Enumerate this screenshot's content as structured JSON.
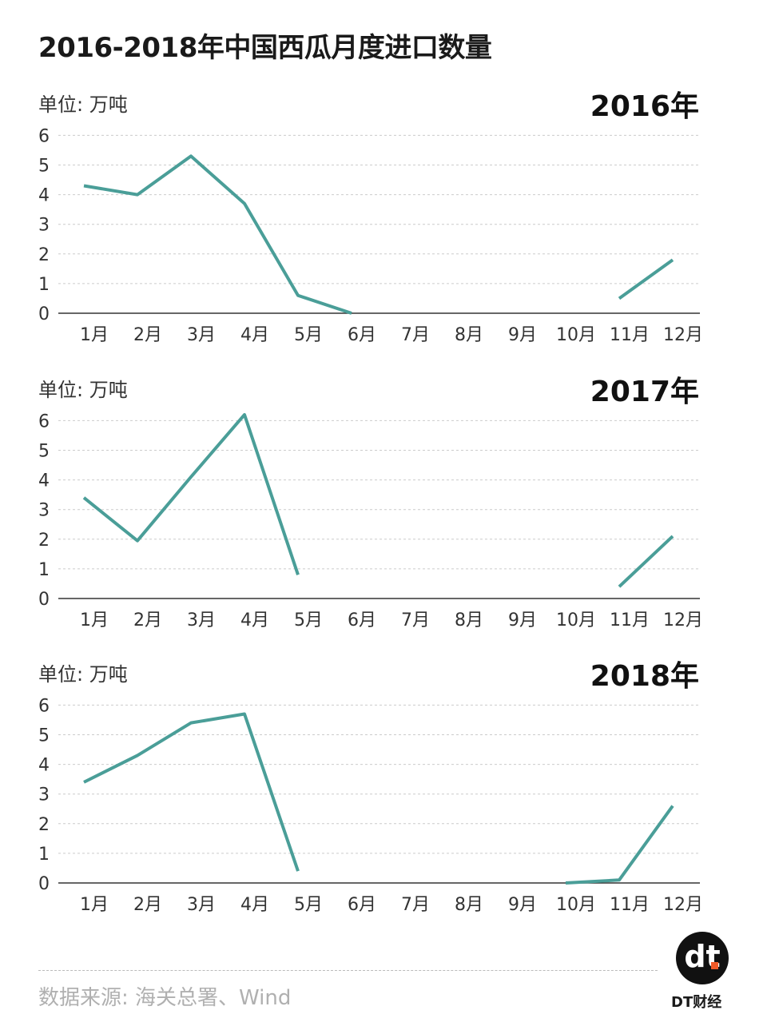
{
  "title": "2016-2018年中国西瓜月度进口数量",
  "source": "数据来源: 海关总署、Wind",
  "brand": {
    "logo": "dt",
    "name": "DT财经"
  },
  "colors": {
    "line": "#4a9e98",
    "grid": "#cccccc",
    "axis": "#333333"
  },
  "chart_data": [
    {
      "type": "line",
      "title": "2016年",
      "ylabel": "单位: 万吨",
      "ylim": [
        0,
        6
      ],
      "yticks": [
        0,
        1,
        2,
        3,
        4,
        5,
        6
      ],
      "grid": true,
      "categories": [
        "1月",
        "2月",
        "3月",
        "4月",
        "5月",
        "6月",
        "7月",
        "8月",
        "9月",
        "10月",
        "11月",
        "12月"
      ],
      "values": [
        4.3,
        4.0,
        5.3,
        3.7,
        0.6,
        0.0,
        null,
        null,
        null,
        null,
        0.5,
        1.8
      ]
    },
    {
      "type": "line",
      "title": "2017年",
      "ylabel": "单位: 万吨",
      "ylim": [
        0,
        6
      ],
      "yticks": [
        0,
        1,
        2,
        3,
        4,
        5,
        6
      ],
      "grid": true,
      "categories": [
        "1月",
        "2月",
        "3月",
        "4月",
        "5月",
        "6月",
        "7月",
        "8月",
        "9月",
        "10月",
        "11月",
        "12月"
      ],
      "values": [
        3.4,
        1.95,
        4.1,
        6.2,
        0.8,
        null,
        null,
        null,
        null,
        null,
        0.4,
        2.1
      ]
    },
    {
      "type": "line",
      "title": "2018年",
      "ylabel": "单位: 万吨",
      "ylim": [
        0,
        6
      ],
      "yticks": [
        0,
        1,
        2,
        3,
        4,
        5,
        6
      ],
      "grid": true,
      "categories": [
        "1月",
        "2月",
        "3月",
        "4月",
        "5月",
        "6月",
        "7月",
        "8月",
        "9月",
        "10月",
        "11月",
        "12月"
      ],
      "values": [
        3.4,
        4.3,
        5.4,
        5.7,
        0.4,
        null,
        null,
        null,
        null,
        0.0,
        0.1,
        2.6
      ]
    }
  ]
}
